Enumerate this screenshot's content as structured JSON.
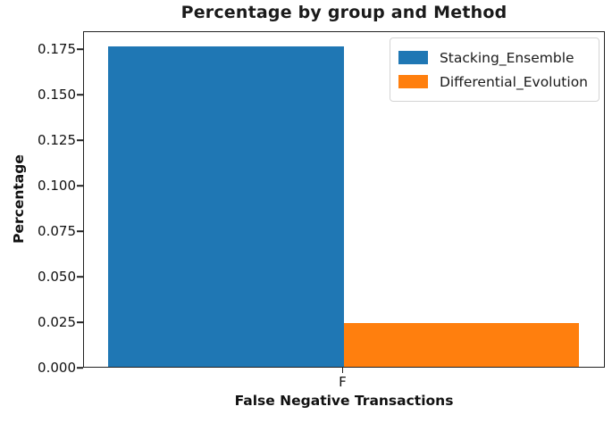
{
  "chart_data": {
    "type": "bar",
    "title": "Percentage by group and Method",
    "xlabel": "False Negative Transactions",
    "ylabel": "Percentage",
    "categories": [
      "F"
    ],
    "series": [
      {
        "name": "Stacking_Ensemble",
        "color": "#1f77b4",
        "values": [
          0.176
        ]
      },
      {
        "name": "Differential_Evolution",
        "color": "#ff7f0e",
        "values": [
          0.024
        ]
      }
    ],
    "ylim": [
      0,
      0.1848
    ],
    "yticks": [
      "0.000",
      "0.025",
      "0.050",
      "0.075",
      "0.100",
      "0.125",
      "0.150",
      "0.175"
    ],
    "grid": false,
    "legend_position": "upper right"
  },
  "colors": {
    "axis": "#222222",
    "bar_blue": "#1f77b4",
    "bar_orange": "#ff7f0e"
  }
}
